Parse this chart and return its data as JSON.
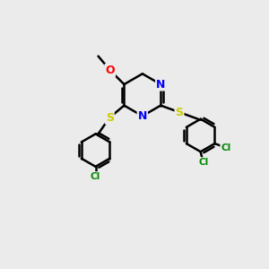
{
  "bg_color": "#ebebeb",
  "bond_color": "#000000",
  "bond_width": 1.8,
  "atom_colors": {
    "N": "#0000ff",
    "S": "#cccc00",
    "O": "#ff0000",
    "Cl": "#008800",
    "C": "#000000"
  },
  "font_size_atom": 9,
  "font_size_small": 7.5,
  "ring_r": 0.8,
  "ph_r": 0.62
}
